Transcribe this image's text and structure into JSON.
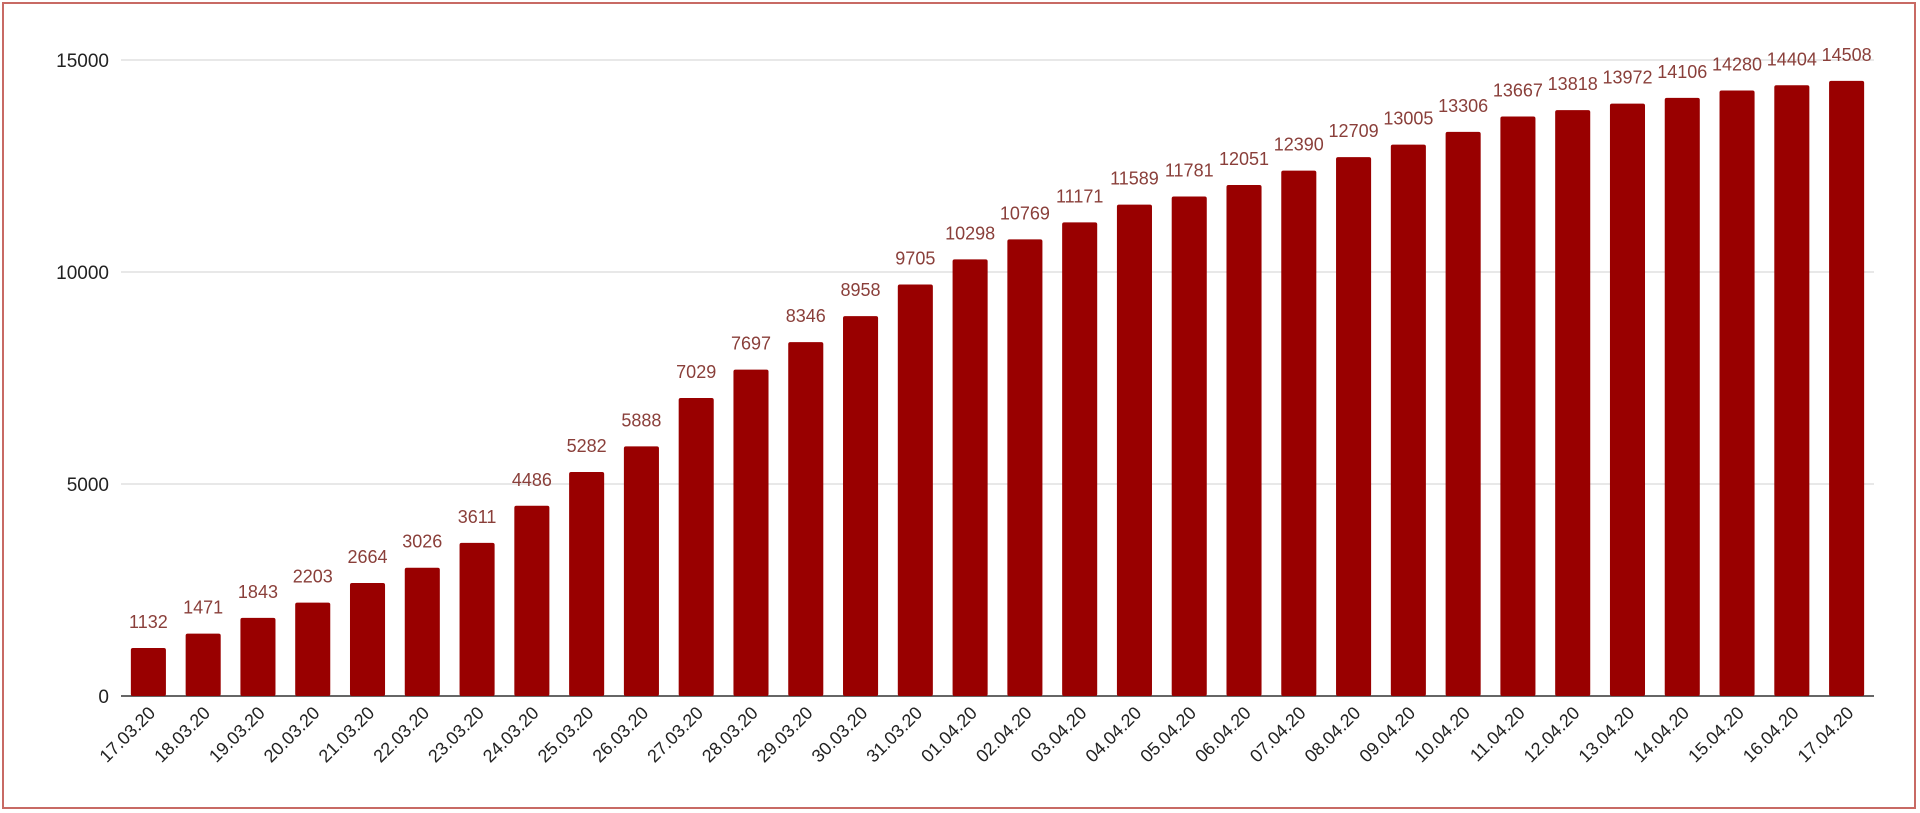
{
  "chart_data": {
    "type": "bar",
    "title": "",
    "xlabel": "",
    "ylabel": "",
    "ylim": [
      0,
      15000
    ],
    "yticks": [
      0,
      5000,
      10000,
      15000
    ],
    "grid": true,
    "legend": "none",
    "bar_color": "#990000",
    "label_color": "#8a3f3a",
    "categories": [
      "17.03.20",
      "18.03.20",
      "19.03.20",
      "20.03.20",
      "21.03.20",
      "22.03.20",
      "23.03.20",
      "24.03.20",
      "25.03.20",
      "26.03.20",
      "27.03.20",
      "28.03.20",
      "29.03.20",
      "30.03.20",
      "31.03.20",
      "01.04.20",
      "02.04.20",
      "03.04.20",
      "04.04.20",
      "05.04.20",
      "06.04.20",
      "07.04.20",
      "08.04.20",
      "09.04.20",
      "10.04.20",
      "11.04.20",
      "12.04.20",
      "13.04.20",
      "14.04.20",
      "15.04.20",
      "16.04.20",
      "17.04.20"
    ],
    "values": [
      1132,
      1471,
      1843,
      2203,
      2664,
      3026,
      3611,
      4486,
      5282,
      5888,
      7029,
      7697,
      8346,
      8958,
      9705,
      10298,
      10769,
      11171,
      11589,
      11781,
      12051,
      12390,
      12709,
      13005,
      13306,
      13667,
      13818,
      13972,
      14106,
      14280,
      14404,
      14508
    ]
  }
}
